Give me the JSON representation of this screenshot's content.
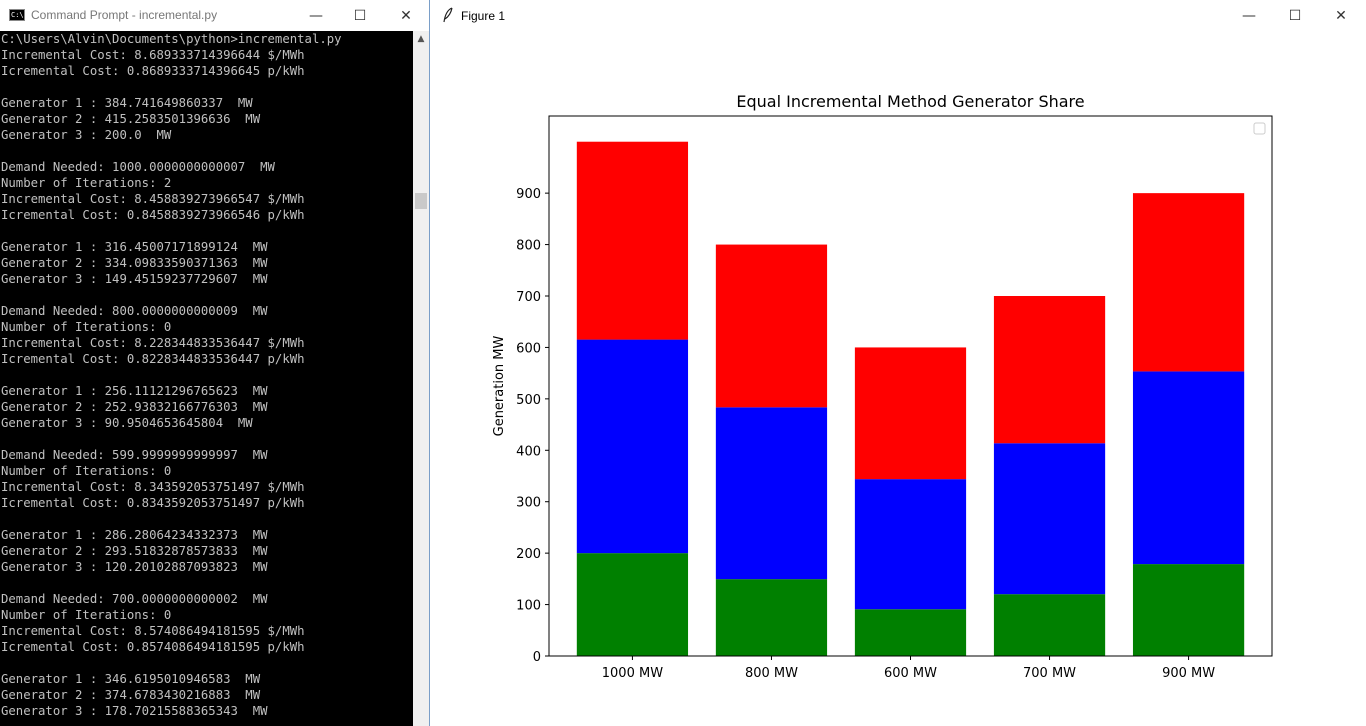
{
  "cmd_window": {
    "title": "Command Prompt - incremental.py",
    "icon": "command-prompt-icon",
    "lines": [
      "C:\\Users\\Alvin\\Documents\\python>incremental.py",
      "Incremental Cost: 8.689333714396644 $/MWh",
      "Icremental Cost: 0.8689333714396645 p/kWh",
      "",
      "Generator 1 : 384.741649860337  MW",
      "Generator 2 : 415.2583501396636  MW",
      "Generator 3 : 200.0  MW",
      "",
      "Demand Needed: 1000.0000000000007  MW",
      "Number of Iterations: 2",
      "Incremental Cost: 8.458839273966547 $/MWh",
      "Icremental Cost: 0.8458839273966546 p/kWh",
      "",
      "Generator 1 : 316.45007171899124  MW",
      "Generator 2 : 334.09833590371363  MW",
      "Generator 3 : 149.45159237729607  MW",
      "",
      "Demand Needed: 800.0000000000009  MW",
      "Number of Iterations: 0",
      "Incremental Cost: 8.228344833536447 $/MWh",
      "Icremental Cost: 0.8228344833536447 p/kWh",
      "",
      "Generator 1 : 256.11121296765623  MW",
      "Generator 2 : 252.93832166776303  MW",
      "Generator 3 : 90.9504653645804  MW",
      "",
      "Demand Needed: 599.9999999999997  MW",
      "Number of Iterations: 0",
      "Incremental Cost: 8.343592053751497 $/MWh",
      "Icremental Cost: 0.8343592053751497 p/kWh",
      "",
      "Generator 1 : 286.28064234332373  MW",
      "Generator 2 : 293.51832878573833  MW",
      "Generator 3 : 120.20102887093823  MW",
      "",
      "Demand Needed: 700.0000000000002  MW",
      "Number of Iterations: 0",
      "Incremental Cost: 8.574086494181595 $/MWh",
      "Icremental Cost: 0.8574086494181595 p/kWh",
      "",
      "Generator 1 : 346.6195010946583  MW",
      "Generator 2 : 374.6783430216883  MW",
      "Generator 3 : 178.70215588365343  MW"
    ]
  },
  "figure_window": {
    "title": "Figure 1",
    "icon": "feather-icon"
  },
  "window_controls": {
    "minimize": "—",
    "maximize": "☐",
    "close": "✕"
  },
  "chart_data": {
    "type": "bar",
    "stacked": true,
    "title": "Equal Incremental Method Generator Share",
    "xlabel": "",
    "ylabel": "Generation MW",
    "categories": [
      "1000 MW",
      "800 MW",
      "600 MW",
      "700 MW",
      "900 MW"
    ],
    "series": [
      {
        "values": [
          200.0,
          149.45,
          90.95,
          120.2,
          178.7
        ],
        "color": "#008000"
      },
      {
        "values": [
          415.26,
          334.1,
          252.94,
          293.52,
          374.68
        ],
        "color": "#0000ff"
      },
      {
        "values": [
          384.74,
          316.45,
          256.11,
          286.28,
          346.62
        ],
        "color": "#ff0000"
      }
    ],
    "yticks": [
      0,
      100,
      200,
      300,
      400,
      500,
      600,
      700,
      800,
      900
    ],
    "ylim": [
      0,
      1050
    ],
    "grid": false,
    "legend": "upper-right (empty)"
  }
}
